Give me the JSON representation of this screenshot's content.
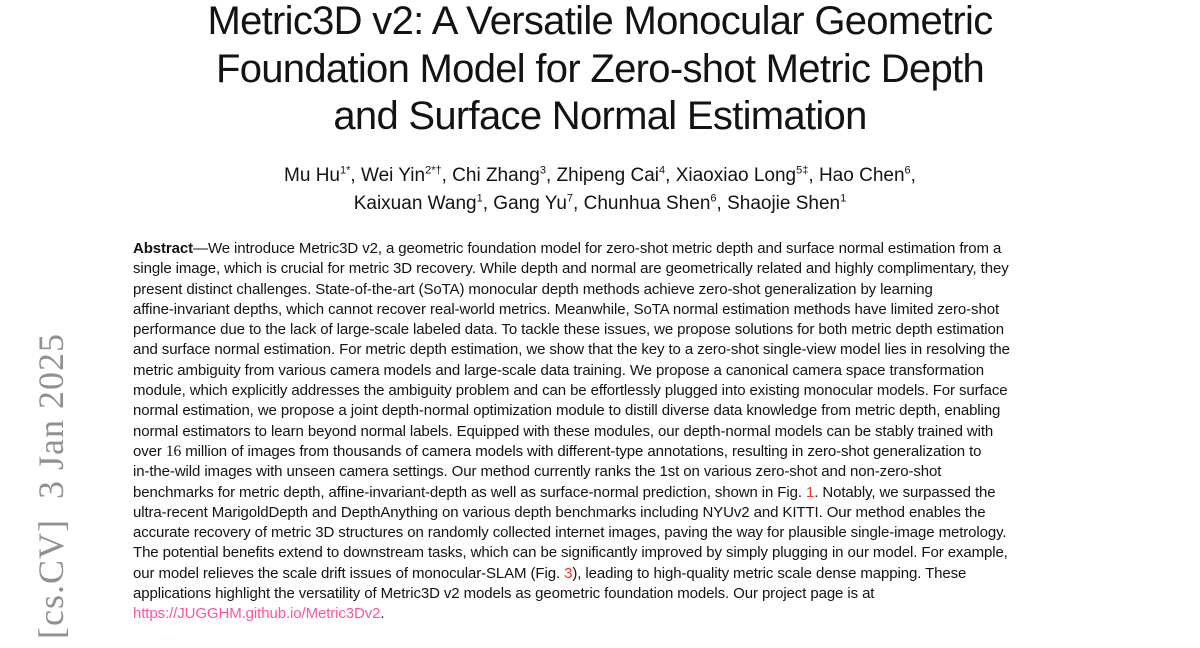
{
  "title": {
    "lines": [
      "Metric3D v2: A Versatile Monocular Geometric",
      "Foundation Model for Zero-shot Metric Depth",
      "and Surface Normal Estimation"
    ]
  },
  "authors": {
    "lines": [
      [
        {
          "t": "Mu Hu"
        },
        {
          "t": "1*",
          "sup": true
        },
        {
          "t": ", Wei Yin"
        },
        {
          "t": "2*†",
          "sup": true
        },
        {
          "t": ", Chi Zhang"
        },
        {
          "t": "3",
          "sup": true
        },
        {
          "t": ", Zhipeng Cai"
        },
        {
          "t": "4",
          "sup": true
        },
        {
          "t": ", Xiaoxiao Long"
        },
        {
          "t": "5‡",
          "sup": true
        },
        {
          "t": ", Hao Chen"
        },
        {
          "t": "6",
          "sup": true
        },
        {
          "t": ","
        }
      ],
      [
        {
          "t": "Kaixuan Wang"
        },
        {
          "t": "1",
          "sup": true
        },
        {
          "t": ", Gang Yu"
        },
        {
          "t": "7",
          "sup": true
        },
        {
          "t": ", Chunhua Shen"
        },
        {
          "t": "6",
          "sup": true
        },
        {
          "t": ", Shaojie Shen"
        },
        {
          "t": "1",
          "sup": true
        }
      ]
    ]
  },
  "abstract": {
    "lines": [
      [
        {
          "t": "Abstract",
          "s": "b"
        },
        {
          "t": "—We introduce Metric3D v2, a geometric foundation model for zero-shot metric depth and surface normal estimation from a"
        }
      ],
      [
        {
          "t": "single image, which is crucial for metric 3D recovery. While depth and normal are geometrically related and highly complimentary, they"
        }
      ],
      [
        {
          "t": "present distinct challenges. State-of-the-art (SoTA) monocular depth methods achieve zero-shot generalization by learning"
        }
      ],
      [
        {
          "t": "affine-invariant depths, which cannot recover real-world metrics. Meanwhile, SoTA normal estimation methods have limited zero-shot"
        }
      ],
      [
        {
          "t": "performance due to the lack of large-scale labeled data. To tackle these issues, we propose solutions for both metric depth estimation"
        }
      ],
      [
        {
          "t": "and surface normal estimation. For metric depth estimation, we show that the key to a zero-shot single-view model lies in resolving the"
        }
      ],
      [
        {
          "t": "metric ambiguity from various camera models and large-scale data training. We propose a canonical camera space transformation"
        }
      ],
      [
        {
          "t": "module, which explicitly addresses the ambiguity problem and can be effortlessly plugged into existing monocular models. For surface"
        }
      ],
      [
        {
          "t": "normal estimation, we propose a joint depth-normal optimization module to distill diverse data knowledge from metric depth, enabling"
        }
      ],
      [
        {
          "t": "normal estimators to learn beyond normal labels. Equipped with these modules, our depth-normal models can be stably trained with"
        }
      ],
      [
        {
          "t": "over "
        },
        {
          "t": "16",
          "s": "serif"
        },
        {
          "t": " million of images from thousands of camera models with different-type annotations, resulting in zero-shot generalization to"
        }
      ],
      [
        {
          "t": "in-the-wild images with unseen camera settings. Our method currently ranks the 1st on various zero-shot and non-zero-shot"
        }
      ],
      [
        {
          "t": "benchmarks for metric depth, affine-invariant-depth as well as surface-normal prediction, shown in Fig. "
        },
        {
          "t": "1",
          "s": "red"
        },
        {
          "t": ". Notably, we surpassed the"
        }
      ],
      [
        {
          "t": "ultra-recent MarigoldDepth and DepthAnything on various depth benchmarks including NYUv2 and KITTI. Our method enables the"
        }
      ],
      [
        {
          "t": "accurate recovery of metric 3D structures on randomly collected internet images, paving the way for plausible single-image metrology."
        }
      ],
      [
        {
          "t": "The potential benefits extend to downstream tasks, which can be significantly improved by simply plugging in our model. For example,"
        }
      ],
      [
        {
          "t": "our model relieves the scale drift issues of monocular-SLAM (Fig. "
        },
        {
          "t": "3",
          "s": "red"
        },
        {
          "t": "), leading to high-quality metric scale dense mapping. These"
        }
      ],
      [
        {
          "t": "applications highlight the versatility of Metric3D v2 models as geometric foundation models. Our project page is at"
        }
      ],
      [
        {
          "t": "https://JUGGHM.github.io/Metric3Dv2",
          "s": "link"
        },
        {
          "t": "."
        }
      ]
    ]
  },
  "stamp": {
    "text": "[cs.CV]  3 Jan 2025"
  },
  "colors": {
    "background": "#ffffff",
    "text": "#131313",
    "link": "#fb54a5",
    "figref": "#ef342a",
    "stamp": "#919191"
  }
}
